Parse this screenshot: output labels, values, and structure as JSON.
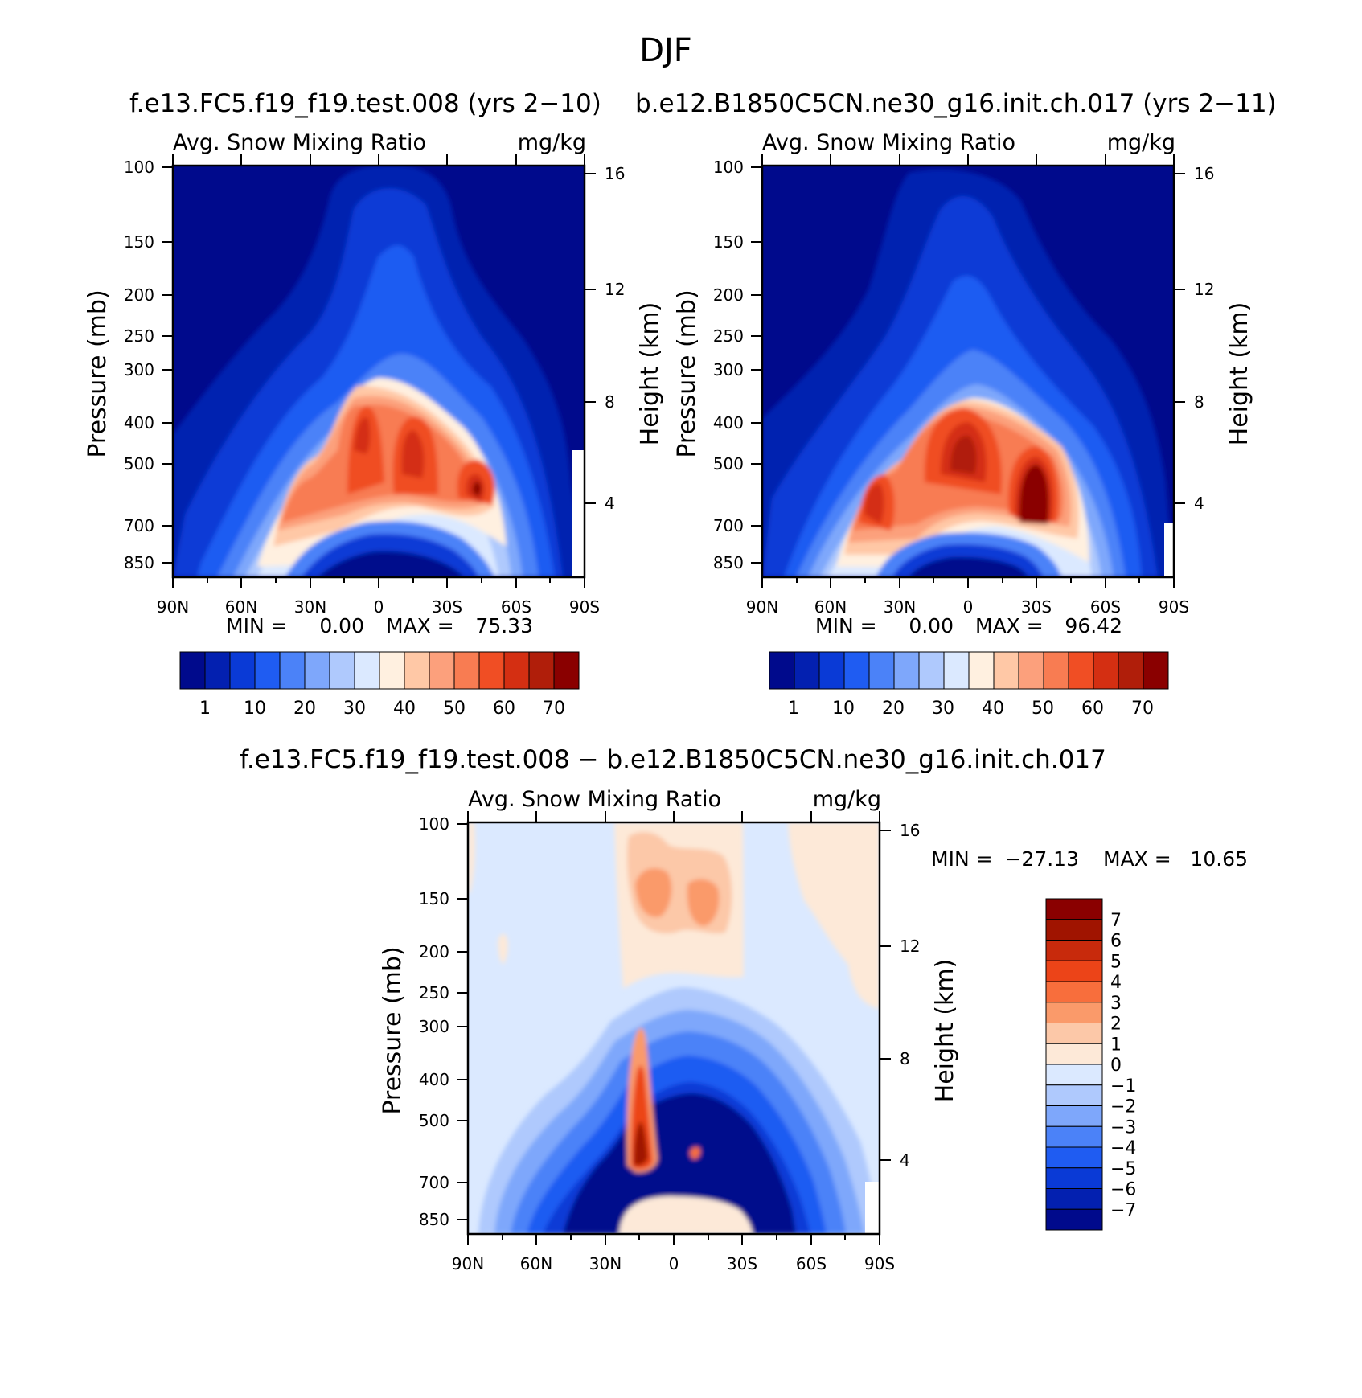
{
  "figure": {
    "title": "DJF"
  },
  "palettes": {
    "field": [
      "#000a8c",
      "#0320b0",
      "#0a3ad6",
      "#1f5cf2",
      "#4b82f8",
      "#7ea7fb",
      "#afc9fd",
      "#dbe9ff",
      "#fff0e0",
      "#ffc8a6",
      "#fca07c",
      "#f87c52",
      "#f04e24",
      "#d42f12",
      "#b01e0a",
      "#8a0000"
    ],
    "diff": [
      "#000a8c",
      "#0320b0",
      "#0a3ad6",
      "#1f5cf2",
      "#4b82f8",
      "#7ea7fb",
      "#afc9fd",
      "#dbe9ff",
      "#fde9d8",
      "#fcc8a8",
      "#fa9a6a",
      "#f86e3c",
      "#ec4418",
      "#c82a0c",
      "#a01400",
      "#8a0000"
    ]
  },
  "chart_data": [
    {
      "type": "heatmap",
      "panel": "left",
      "title": "f.e13.FC5.f19_f19.test.008 (yrs 2−10)",
      "subtitle_left": "Avg. Snow Mixing Ratio",
      "subtitle_right": "mg/kg",
      "ylabel": "Pressure (mb)",
      "ylabel_right": "Height (km)",
      "x_ticklabels": [
        "90N",
        "60N",
        "30N",
        "0",
        "30S",
        "60S",
        "90S"
      ],
      "y_ticklabels": [
        "100",
        "150",
        "200",
        "250",
        "300",
        "400",
        "500",
        "700",
        "850"
      ],
      "y_right_ticklabels": [
        "16",
        "12",
        "8",
        "4"
      ],
      "min_text": "MIN =",
      "min_value": "0.00",
      "max_text": "MAX =",
      "max_value": "75.33",
      "colorbar_labels": [
        "1",
        "10",
        "20",
        "30",
        "40",
        "50",
        "60",
        "70"
      ],
      "ylim": [
        850,
        100
      ],
      "xlim": [
        90,
        -90
      ],
      "features": [
        {
          "lat": -42,
          "p": 570,
          "value": 75.33
        },
        {
          "lat": 8,
          "p": 420,
          "value": 60
        },
        {
          "lat": -5,
          "p": 420,
          "value": 55
        },
        {
          "lat": 38,
          "p": 620,
          "value": 45
        }
      ]
    },
    {
      "type": "heatmap",
      "panel": "right",
      "title": "b.e12.B1850C5CN.ne30_g16.init.ch.017 (yrs 2−11)",
      "subtitle_left": "Avg. Snow Mixing Ratio",
      "subtitle_right": "mg/kg",
      "ylabel": "Pressure (mb)",
      "ylabel_right": "Height (km)",
      "x_ticklabels": [
        "90N",
        "60N",
        "30N",
        "0",
        "30S",
        "60S",
        "90S"
      ],
      "y_ticklabels": [
        "100",
        "150",
        "200",
        "250",
        "300",
        "400",
        "500",
        "700",
        "850"
      ],
      "y_right_ticklabels": [
        "16",
        "12",
        "8",
        "4"
      ],
      "min_text": "MIN =",
      "min_value": "0.00",
      "max_text": "MAX =",
      "max_value": "96.42",
      "colorbar_labels": [
        "1",
        "10",
        "20",
        "30",
        "40",
        "50",
        "60",
        "70"
      ],
      "ylim": [
        850,
        100
      ],
      "xlim": [
        90,
        -90
      ],
      "features": [
        {
          "lat": -40,
          "p": 550,
          "value": 96.42
        },
        {
          "lat": -10,
          "p": 420,
          "value": 75
        },
        {
          "lat": 35,
          "p": 600,
          "value": 65
        }
      ]
    },
    {
      "type": "heatmap",
      "panel": "diff",
      "title": "f.e13.FC5.f19_f19.test.008 − b.e12.B1850C5CN.ne30_g16.init.ch.017",
      "subtitle_left": "Avg. Snow Mixing Ratio",
      "subtitle_right": "mg/kg",
      "ylabel": "Pressure (mb)",
      "ylabel_right": "Height (km)",
      "x_ticklabels": [
        "90N",
        "60N",
        "30N",
        "0",
        "30S",
        "60S",
        "90S"
      ],
      "y_ticklabels": [
        "100",
        "150",
        "200",
        "250",
        "300",
        "400",
        "500",
        "700",
        "850"
      ],
      "y_right_ticklabels": [
        "16",
        "12",
        "8",
        "4"
      ],
      "min_text": "MIN =",
      "min_value": "−27.13",
      "max_text": "MAX =",
      "max_value": "10.65",
      "colorbar_labels": [
        "7",
        "6",
        "5",
        "4",
        "3",
        "2",
        "1",
        "0",
        "−1",
        "−2",
        "−3",
        "−4",
        "−5",
        "−6",
        "−7"
      ],
      "ylim": [
        850,
        100
      ],
      "xlim": [
        90,
        -90
      ],
      "features": [
        {
          "lat": 15,
          "p": 560,
          "value": 10.65
        },
        {
          "lat": 10,
          "p": 450,
          "value": -27.13
        },
        {
          "lat": -40,
          "p": 450,
          "value": -20
        }
      ]
    }
  ]
}
